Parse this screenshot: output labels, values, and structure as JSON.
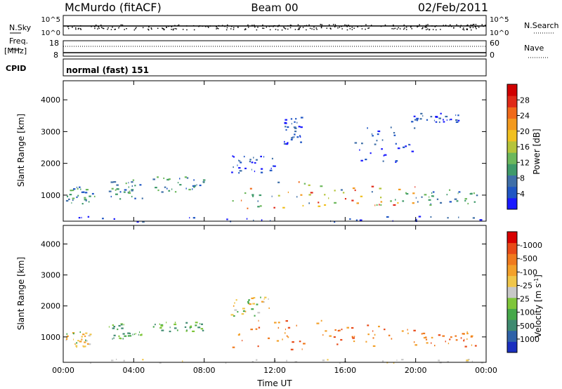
{
  "header": {
    "station": "McMurdo (fitACF)",
    "beam": "Beam 00",
    "date": "02/Feb/2011"
  },
  "strips": {
    "nsky_label": "N.Sky",
    "nsky_ticks": [
      "10^5",
      "10^0"
    ],
    "nsearch_label": "N.Search",
    "nsearch_ticks": [
      "10^5",
      "10^0"
    ],
    "freq_label": "Freq.",
    "freq_unit": "[MHz]",
    "freq_ticks": [
      "18",
      "8"
    ],
    "nave_label": "Nave",
    "nave_ticks": [
      "60",
      "0"
    ],
    "cpid_label": "CPID",
    "cpid_value": "normal (fast) 151"
  },
  "chart_data": [
    {
      "type": "heatmap",
      "title": "",
      "xlabel": "Time UT",
      "ylabel": "Slant Range [km]",
      "x_ticks": [
        "00:00",
        "04:00",
        "08:00",
        "12:00",
        "16:00",
        "20:00",
        "00:00"
      ],
      "y_ticks": [
        "1000",
        "2000",
        "3000",
        "4000"
      ],
      "ylim": [
        180,
        4600
      ],
      "colorbar": {
        "label": "Power [dB]",
        "ticks": [
          "4",
          "8",
          "12",
          "16",
          "20",
          "24",
          "28"
        ],
        "colors": [
          "#1a1aff",
          "#1f56c4",
          "#3f6fa8",
          "#3f9a6a",
          "#6cb85c",
          "#b5c43a",
          "#f0c020",
          "#f39a1e",
          "#f06a1a",
          "#e02a18",
          "#d00000"
        ]
      },
      "echo_regions": [
        {
          "t_start": 0.0,
          "t_end": 1.8,
          "range_km": [
            700,
            1300
          ],
          "level": "medium"
        },
        {
          "t_start": 2.5,
          "t_end": 4.5,
          "range_km": [
            900,
            1500
          ],
          "level": "medium"
        },
        {
          "t_start": 5.0,
          "t_end": 8.0,
          "range_km": [
            1100,
            1600
          ],
          "level": "medium"
        },
        {
          "t_start": 9.5,
          "t_end": 15.0,
          "range_km": [
            600,
            1500
          ],
          "level": "high"
        },
        {
          "t_start": 15.0,
          "t_end": 20.0,
          "range_km": [
            700,
            1300
          ],
          "level": "high"
        },
        {
          "t_start": 20.0,
          "t_end": 23.5,
          "range_km": [
            700,
            1200
          ],
          "level": "medium"
        },
        {
          "t_start": 9.5,
          "t_end": 12.0,
          "range_km": [
            1700,
            2300
          ],
          "level": "low"
        },
        {
          "t_start": 12.5,
          "t_end": 13.5,
          "range_km": [
            2600,
            3500
          ],
          "level": "low"
        },
        {
          "t_start": 16.5,
          "t_end": 20.0,
          "range_km": [
            2000,
            3200
          ],
          "level": "low"
        },
        {
          "t_start": 19.5,
          "t_end": 22.5,
          "range_km": [
            3300,
            3600
          ],
          "level": "low"
        },
        {
          "t_start": 0.0,
          "t_end": 24.0,
          "range_km": [
            180,
            350
          ],
          "level": "low"
        }
      ]
    },
    {
      "type": "heatmap",
      "title": "",
      "xlabel": "Time UT",
      "ylabel": "Slant Range [km]",
      "x_ticks": [
        "00:00",
        "04:00",
        "08:00",
        "12:00",
        "16:00",
        "20:00",
        "00:00"
      ],
      "y_ticks": [
        "1000",
        "2000",
        "3000",
        "4000"
      ],
      "ylim": [
        180,
        4600
      ],
      "colorbar": {
        "label": "Velocity [m s^-1]",
        "ticks": [
          "1000",
          "500",
          "100",
          "25",
          "-25",
          "-100",
          "-500",
          "-1000"
        ],
        "colors": [
          "#1a2fbf",
          "#2f62a8",
          "#3f8a70",
          "#46a84a",
          "#7fc63a",
          "#c8c8c8",
          "#f0c64a",
          "#f3a02a",
          "#f07a1e",
          "#e84a18",
          "#d80000"
        ]
      },
      "echo_regions": [
        {
          "t_start": 0.0,
          "t_end": 1.5,
          "range_km": [
            700,
            1200
          ],
          "velocity": "mixed"
        },
        {
          "t_start": 2.5,
          "t_end": 4.5,
          "range_km": [
            900,
            1500
          ],
          "velocity": "positive"
        },
        {
          "t_start": 5.0,
          "t_end": 8.0,
          "range_km": [
            1200,
            1500
          ],
          "velocity": "positive"
        },
        {
          "t_start": 9.5,
          "t_end": 15.0,
          "range_km": [
            600,
            1600
          ],
          "velocity": "negative"
        },
        {
          "t_start": 15.0,
          "t_end": 20.0,
          "range_km": [
            700,
            1400
          ],
          "velocity": "negative"
        },
        {
          "t_start": 20.0,
          "t_end": 23.5,
          "range_km": [
            700,
            1200
          ],
          "velocity": "negative"
        },
        {
          "t_start": 9.5,
          "t_end": 12.0,
          "range_km": [
            1700,
            2300
          ],
          "velocity": "mixed"
        },
        {
          "t_start": 0.0,
          "t_end": 24.0,
          "range_km": [
            180,
            300
          ],
          "velocity": "near-zero"
        }
      ]
    }
  ]
}
